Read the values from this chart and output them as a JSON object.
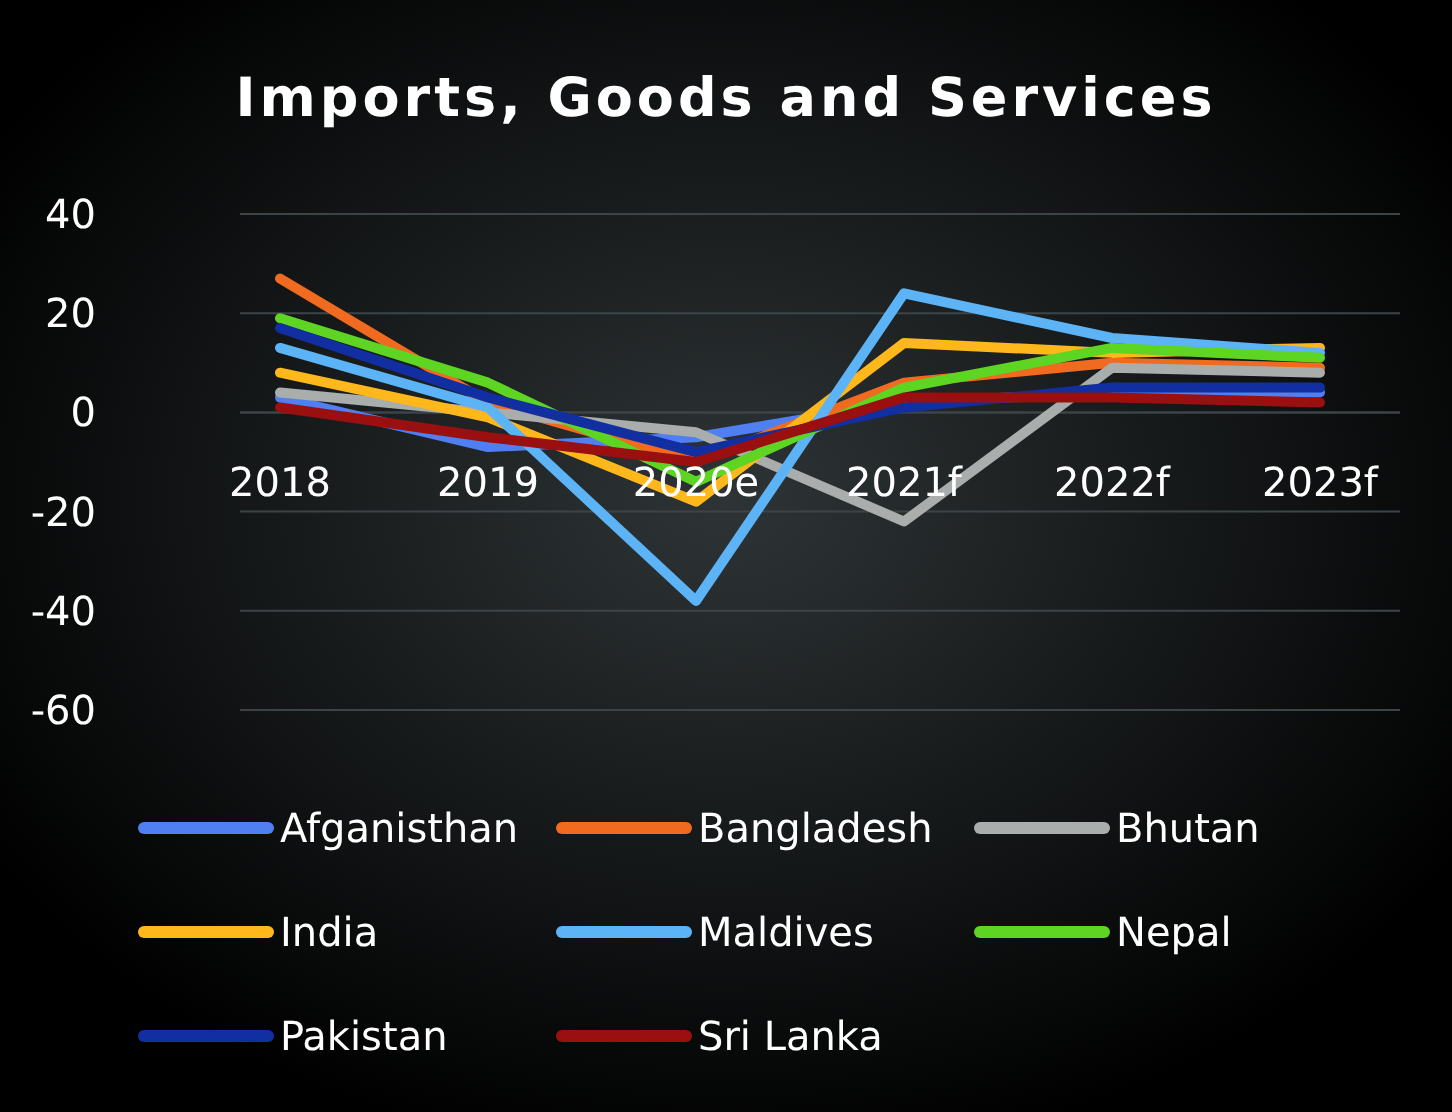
{
  "chart_data": {
    "type": "line",
    "title": "Imports, Goods and Services",
    "categories": [
      "2018",
      "2019",
      "2020e",
      "2021f",
      "2022f",
      "2023f"
    ],
    "series": [
      {
        "name": "Afganisthan",
        "color": "#4f7ff0",
        "values": [
          3,
          -7,
          -5,
          2,
          4,
          4
        ]
      },
      {
        "name": "Bangladesh",
        "color": "#f06a20",
        "values": [
          27,
          2,
          -10,
          6,
          10,
          9
        ]
      },
      {
        "name": "Bhutan",
        "color": "#a9adab",
        "values": [
          4,
          0,
          -4,
          -22,
          9,
          8
        ]
      },
      {
        "name": "India",
        "color": "#ffb81c",
        "values": [
          8,
          -1,
          -18,
          14,
          12,
          13
        ]
      },
      {
        "name": "Maldives",
        "color": "#5cb3f5",
        "values": [
          13,
          1,
          -38,
          24,
          15,
          12
        ]
      },
      {
        "name": "Nepal",
        "color": "#5ed423",
        "values": [
          19,
          6,
          -14,
          5,
          13,
          11
        ]
      },
      {
        "name": "Pakistan",
        "color": "#112fa0",
        "values": [
          17,
          3,
          -8,
          1,
          5,
          5
        ]
      },
      {
        "name": "Sri Lanka",
        "color": "#9a0f0f",
        "values": [
          1,
          -5,
          -10,
          3,
          3,
          2
        ]
      }
    ],
    "ylim": [
      -60,
      40
    ],
    "yticks": [
      -60,
      -40,
      -20,
      0,
      20,
      40
    ],
    "grid": "y",
    "legend": "bottom",
    "line_style": "solid"
  }
}
